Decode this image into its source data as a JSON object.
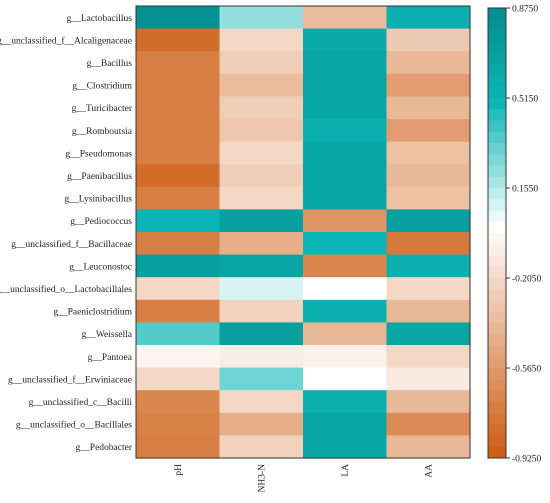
{
  "chart_data": {
    "type": "heatmap",
    "title": "",
    "xlabel": "",
    "ylabel": "",
    "columns": [
      "pH",
      "NH3-N",
      "LA",
      "AA"
    ],
    "rows": [
      "g__Lactobacillus",
      "g__unclassified_f__Alcaligenaceae",
      "g__Bacillus",
      "g__Clostridium",
      "g__Turicibacter",
      "g__Romboutsia",
      "g__Pseudomonas",
      "g__Paenibacillus",
      "g__Lysinibacillus",
      "g__Pediococcus",
      "g__unclassified_f__Bacillaceae",
      "g__Leuconostoc",
      "g__unclassified_o__Lactobacillales",
      "g__Paeniclostridium",
      "g__Weissella",
      "g__Pantoea",
      "g__unclassified_f__Erwiniaceae",
      "g__unclassified_c__Bacilli",
      "g__unclassified_o__Bacillales",
      "g__Pedobacter"
    ],
    "values": [
      [
        0.82,
        0.22,
        -0.38,
        0.55
      ],
      [
        -0.82,
        -0.22,
        0.6,
        -0.3
      ],
      [
        -0.72,
        -0.28,
        0.65,
        -0.4
      ],
      [
        -0.72,
        -0.38,
        0.65,
        -0.55
      ],
      [
        -0.72,
        -0.28,
        0.65,
        -0.4
      ],
      [
        -0.72,
        -0.32,
        0.55,
        -0.55
      ],
      [
        -0.72,
        -0.22,
        0.65,
        -0.35
      ],
      [
        -0.82,
        -0.28,
        0.65,
        -0.4
      ],
      [
        -0.72,
        -0.22,
        0.65,
        -0.35
      ],
      [
        0.5,
        0.7,
        -0.6,
        0.7
      ],
      [
        -0.72,
        -0.45,
        0.5,
        -0.75
      ],
      [
        0.7,
        0.65,
        -0.68,
        0.55
      ],
      [
        -0.22,
        0.08,
        0.0,
        -0.22
      ],
      [
        -0.72,
        -0.25,
        0.55,
        -0.4
      ],
      [
        0.35,
        0.7,
        -0.4,
        0.65
      ],
      [
        -0.05,
        -0.1,
        -0.08,
        -0.22
      ],
      [
        -0.22,
        0.3,
        0.0,
        -0.12
      ],
      [
        -0.68,
        -0.22,
        0.55,
        -0.4
      ],
      [
        -0.7,
        -0.45,
        0.65,
        -0.65
      ],
      [
        -0.72,
        -0.25,
        0.65,
        -0.4
      ]
    ],
    "colorbar": {
      "min": -0.925,
      "max": 0.875,
      "ticks": [
        "0.8750",
        "0.5150",
        "0.1550",
        "-0.2050",
        "-0.5650",
        "-0.9250"
      ],
      "tick_values": [
        0.875,
        0.515,
        0.155,
        -0.205,
        -0.565,
        -0.925
      ],
      "steps": 40,
      "low_color": "#cc5a0f",
      "mid_color": "#ffffff",
      "high_color": "#0bb5b5",
      "top_color": "#058c8c"
    },
    "grid": false,
    "legend": "right"
  }
}
